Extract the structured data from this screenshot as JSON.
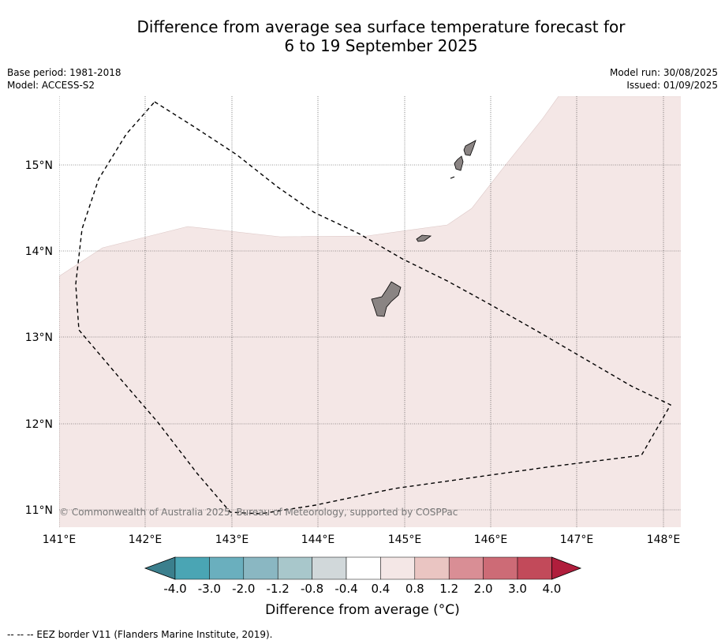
{
  "title_line1": "Difference from average sea surface temperature forecast for",
  "title_line2": "6 to 19 September 2025",
  "base_period": "Base period: 1981-2018",
  "model": "Model: ACCESS-S2",
  "model_run": "Model run: 30/08/2025",
  "issued": "Issued: 01/09/2025",
  "copyright": "© Commonwealth of Australia 2025, Bureau of Meteorology, supported by COSPPac",
  "footer": "--  --  -- EEZ border V11 (Flanders Marine Institute, 2019).",
  "lon_labels": [
    "141°E",
    "142°E",
    "143°E",
    "144°E",
    "145°E",
    "146°E",
    "147°E",
    "148°E"
  ],
  "lat_labels": [
    "15°N",
    "14°N",
    "13°N",
    "12°N",
    "11°N"
  ],
  "colorbar": {
    "title": "Difference from average (°C)",
    "ticks": [
      "-4.0",
      "-3.0",
      "-2.0",
      "-1.2",
      "-0.8",
      "-0.4",
      "0.4",
      "0.8",
      "1.2",
      "2.0",
      "3.0",
      "4.0"
    ],
    "colors": [
      "#3b7f8d",
      "#4aa5b4",
      "#6aafbe",
      "#8ab7c2",
      "#a8c7cb",
      "#d1d8da",
      "#ffffff",
      "#f4e7e6",
      "#eac5c2",
      "#d98e95",
      "#cd6b76",
      "#c24a5a",
      "#b01e3c"
    ]
  },
  "map": {
    "anomaly_fill": "#f4e7e6",
    "land_fill": "#8a8483"
  }
}
